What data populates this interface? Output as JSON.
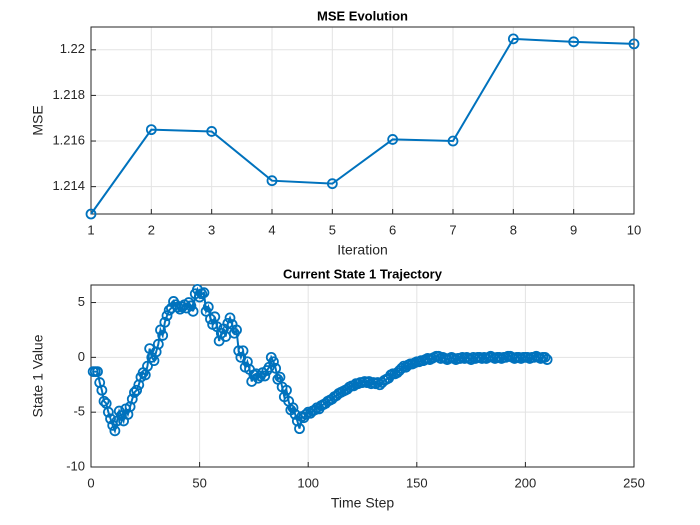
{
  "chart_data": [
    {
      "type": "line",
      "title": "MSE Evolution",
      "xlabel": "Iteration",
      "ylabel": "MSE",
      "marker": "circle",
      "grid": true,
      "series": [
        {
          "color": "#0072bd",
          "x": [
            1,
            2,
            3,
            4,
            5,
            6,
            7,
            8,
            9,
            10
          ],
          "values": [
            1.2128,
            1.2165,
            1.21642,
            1.21426,
            1.21413,
            1.21607,
            1.216,
            1.22048,
            1.22035,
            1.22026
          ]
        }
      ],
      "xlim": [
        1,
        10
      ],
      "xticks": [
        1,
        2,
        3,
        4,
        5,
        6,
        7,
        8,
        9,
        10
      ],
      "ylim": [
        1.2128,
        1.221
      ],
      "yticks": [
        1.214,
        1.216,
        1.218,
        1.22
      ]
    },
    {
      "type": "line",
      "title": "Current State 1 Trajectory",
      "xlabel": "Time Step",
      "ylabel": "State 1 Value",
      "marker": "circle",
      "grid": true,
      "series": [
        {
          "color": "#0072bd",
          "x": [
            1,
            2,
            3,
            4,
            5,
            6,
            7,
            8,
            9,
            10,
            11,
            12,
            13,
            14,
            15,
            16,
            17,
            18,
            19,
            20,
            21,
            22,
            23,
            24,
            25,
            26,
            27,
            28,
            29,
            30,
            31,
            32,
            33,
            34,
            35,
            36,
            37,
            38,
            39,
            40,
            41,
            42,
            43,
            44,
            45,
            46,
            47,
            48,
            49,
            50,
            51,
            52,
            53,
            54,
            55,
            56,
            57,
            58,
            59,
            60,
            61,
            62,
            63,
            64,
            65,
            66,
            67,
            68,
            69,
            70,
            71,
            72,
            73,
            74,
            75,
            76,
            77,
            78,
            79,
            80,
            81,
            82,
            83,
            84,
            85,
            86,
            87,
            88,
            89,
            90,
            91,
            92,
            93,
            94,
            95,
            96,
            97,
            98,
            99,
            100,
            101,
            102,
            103,
            104,
            105,
            106,
            107,
            108,
            109,
            110,
            111,
            112,
            113,
            114,
            115,
            116,
            117,
            118,
            119,
            120,
            121,
            122,
            123,
            124,
            125,
            126,
            127,
            128,
            129,
            130,
            131,
            132,
            133,
            134,
            135,
            136,
            137,
            138,
            139,
            140,
            141,
            142,
            143,
            144,
            145,
            146,
            147,
            148,
            149,
            150,
            151,
            152,
            153,
            154,
            155,
            156,
            157,
            158,
            159,
            160,
            161,
            162,
            163,
            164,
            165,
            166,
            167,
            168,
            169,
            170,
            171,
            172,
            173,
            174,
            175,
            176,
            177,
            178,
            179,
            180,
            181,
            182,
            183,
            184,
            185,
            186,
            187,
            188,
            189,
            190,
            191,
            192,
            193,
            194,
            195,
            196,
            197,
            198,
            199,
            200,
            201,
            202,
            203,
            204,
            205,
            206,
            207,
            208,
            209,
            210
          ],
          "values": [
            -1.3,
            -1.3,
            -1.3,
            -2.3,
            -3.0,
            -4.0,
            -4.2,
            -5.0,
            -5.6,
            -6.2,
            -6.7,
            -5.8,
            -4.9,
            -5.3,
            -5.8,
            -4.7,
            -5.2,
            -4.5,
            -3.8,
            -3.2,
            -3.0,
            -2.5,
            -1.8,
            -1.4,
            -1.6,
            -0.8,
            0.8,
            0.0,
            -0.3,
            0.5,
            1.2,
            2.5,
            2.0,
            3.2,
            3.8,
            4.3,
            4.5,
            5.1,
            4.8,
            4.6,
            4.4,
            4.6,
            4.8,
            4.5,
            5.0,
            4.7,
            4.2,
            5.8,
            6.2,
            5.5,
            5.8,
            5.9,
            4.2,
            4.6,
            3.5,
            3.0,
            3.7,
            2.8,
            1.5,
            2.2,
            2.6,
            1.9,
            3.1,
            3.6,
            3.0,
            2.2,
            2.5,
            0.6,
            0.0,
            0.6,
            -0.9,
            -0.4,
            -1.1,
            -2.2,
            -1.6,
            -1.5,
            -1.9,
            -1.7,
            -1.4,
            -1.7,
            -1.2,
            -0.9,
            0.0,
            -0.4,
            -1.0,
            -2.0,
            -1.8,
            -2.7,
            -3.6,
            -3.0,
            -4.0,
            -4.8,
            -4.6,
            -5.2,
            -5.8,
            -6.5,
            -5.4,
            -5.5,
            -5.2,
            -5.0,
            -5.1,
            -4.9,
            -4.8,
            -4.6,
            -4.7,
            -4.4,
            -4.3,
            -4.2,
            -4.0,
            -3.9,
            -3.8,
            -3.6,
            -3.5,
            -3.3,
            -3.2,
            -3.1,
            -3.0,
            -2.9,
            -2.7,
            -2.6,
            -2.6,
            -2.4,
            -2.4,
            -2.3,
            -2.3,
            -2.2,
            -2.3,
            -2.2,
            -2.4,
            -2.3,
            -2.4,
            -2.3,
            -2.5,
            -2.3,
            -2.1,
            -2.0,
            -1.9,
            -1.6,
            -1.5,
            -1.5,
            -1.4,
            -1.2,
            -1.0,
            -0.8,
            -0.9,
            -0.7,
            -0.6,
            -0.6,
            -0.5,
            -0.4,
            -0.4,
            -0.3,
            -0.3,
            -0.2,
            -0.1,
            -0.2,
            -0.1,
            0.0,
            0.1,
            0.1,
            -0.1,
            0.0,
            -0.1,
            -0.2,
            -0.1,
            0.0,
            -0.1,
            -0.2,
            -0.1,
            -0.1,
            0.0,
            -0.1,
            0.0,
            -0.1,
            -0.2,
            0.0,
            -0.1,
            0.0,
            0.0,
            -0.1,
            0.0,
            -0.1,
            0.0,
            0.1,
            0.0,
            -0.1,
            0.0,
            0.0,
            -0.1,
            0.0,
            0.0,
            0.1,
            0.1,
            0.0,
            -0.1,
            0.0,
            0.0,
            -0.1,
            0.0,
            0.0,
            0.0,
            -0.1,
            0.0,
            0.0,
            0.1,
            0.0,
            -0.1,
            0.0,
            0.0,
            -0.2
          ]
        }
      ],
      "xlim": [
        0,
        250
      ],
      "xticks": [
        0,
        50,
        100,
        150,
        200,
        250
      ],
      "ylim": [
        -10,
        6.6
      ],
      "yticks": [
        -10,
        -5,
        0,
        5
      ]
    }
  ]
}
